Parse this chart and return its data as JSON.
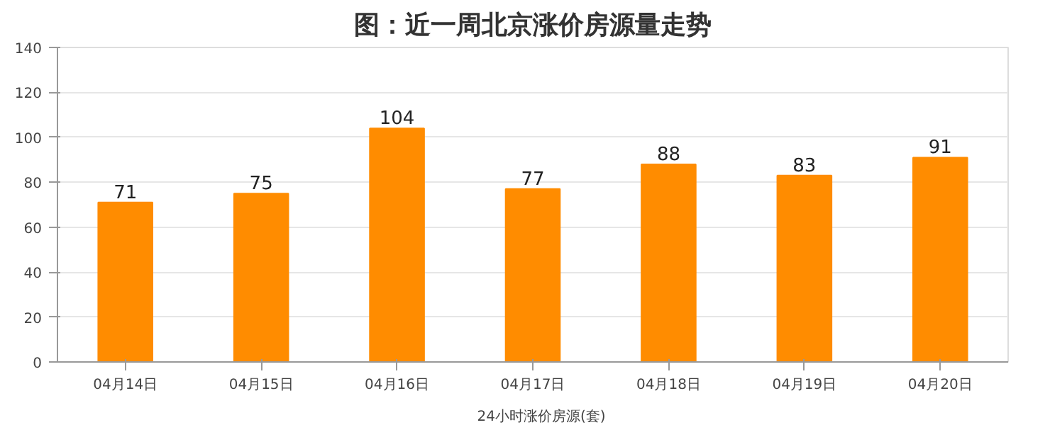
{
  "chart_data": {
    "type": "bar",
    "title": "图：近一周北京涨价房源量走势",
    "categories": [
      "04月14日",
      "04月15日",
      "04月16日",
      "04月17日",
      "04月18日",
      "04月19日",
      "04月20日"
    ],
    "series": [
      {
        "name": "24小时涨价房源(套)",
        "color": "#ff8c00",
        "values": [
          71,
          75,
          104,
          77,
          88,
          83,
          91
        ]
      }
    ],
    "ylim": [
      0,
      140
    ],
    "yticks": [
      0,
      20,
      40,
      60,
      80,
      100,
      120,
      140
    ],
    "grid": "y",
    "legend": "bottom",
    "data_labels": true
  }
}
